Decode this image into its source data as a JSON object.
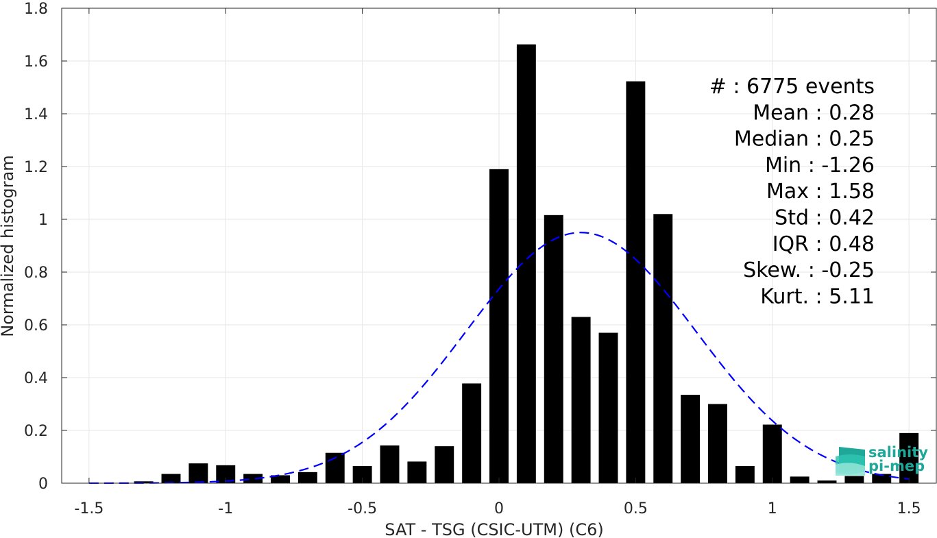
{
  "chart_data": {
    "type": "bar",
    "title": "",
    "xlabel": "SAT - TSG (CSIC-UTM) (C6)",
    "ylabel": "Normalized histogram",
    "xlim": [
      -1.6,
      1.6
    ],
    "ylim": [
      0,
      1.8
    ],
    "grid": true,
    "xticks": [
      "-1.5",
      "-1",
      "-0.5",
      "0",
      "0.5",
      "1",
      "1.5"
    ],
    "xtick_values": [
      -1.5,
      -1,
      -0.5,
      0,
      0.5,
      1,
      1.5
    ],
    "yticks": [
      "0",
      "0.2",
      "0.4",
      "0.6",
      "0.8",
      "1",
      "1.2",
      "1.4",
      "1.6",
      "1.8"
    ],
    "ytick_values": [
      0,
      0.2,
      0.4,
      0.6,
      0.8,
      1,
      1.2,
      1.4,
      1.6,
      1.8
    ],
    "bar_color": "#000000",
    "bin_width": 0.1,
    "bars": [
      {
        "x": -1.4,
        "value": 0.0
      },
      {
        "x": -1.3,
        "value": 0.007
      },
      {
        "x": -1.2,
        "value": 0.035
      },
      {
        "x": -1.1,
        "value": 0.075
      },
      {
        "x": -1.0,
        "value": 0.068
      },
      {
        "x": -0.9,
        "value": 0.035
      },
      {
        "x": -0.8,
        "value": 0.03
      },
      {
        "x": -0.7,
        "value": 0.042
      },
      {
        "x": -0.6,
        "value": 0.115
      },
      {
        "x": -0.5,
        "value": 0.065
      },
      {
        "x": -0.4,
        "value": 0.143
      },
      {
        "x": -0.3,
        "value": 0.082
      },
      {
        "x": -0.2,
        "value": 0.14
      },
      {
        "x": -0.1,
        "value": 0.378
      },
      {
        "x": 0.0,
        "value": 1.19
      },
      {
        "x": 0.1,
        "value": 1.663
      },
      {
        "x": 0.2,
        "value": 1.016
      },
      {
        "x": 0.3,
        "value": 0.63
      },
      {
        "x": 0.4,
        "value": 0.57
      },
      {
        "x": 0.5,
        "value": 1.523
      },
      {
        "x": 0.6,
        "value": 1.02
      },
      {
        "x": 0.7,
        "value": 0.335
      },
      {
        "x": 0.8,
        "value": 0.3
      },
      {
        "x": 0.9,
        "value": 0.065
      },
      {
        "x": 1.0,
        "value": 0.222
      },
      {
        "x": 1.1,
        "value": 0.025
      },
      {
        "x": 1.2,
        "value": 0.01
      },
      {
        "x": 1.3,
        "value": 0.027
      },
      {
        "x": 1.4,
        "value": 0.035
      },
      {
        "x": 1.5,
        "value": 0.19
      }
    ],
    "fit_curve": {
      "type": "gaussian",
      "mean": 0.3,
      "peak": 0.95,
      "sigma": 0.42,
      "x_range": [
        -1.5,
        1.5
      ],
      "color": "#0000ff",
      "style": "dashed"
    }
  },
  "stats": [
    "#  : 6775 events",
    "Mean : 0.28",
    "Median : 0.25",
    "Min : -1.26",
    "Max : 1.58",
    "Std : 0.42",
    "IQR : 0.48",
    "Skew. : -0.25",
    "Kurt. : 5.11"
  ],
  "logo": {
    "line1": "salinity",
    "line2": "pi-mep",
    "colors": [
      "#1fa89a",
      "#2fc4b2",
      "#8fe3d6"
    ]
  }
}
